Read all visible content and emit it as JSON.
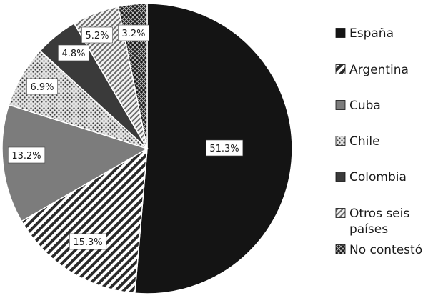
{
  "chart_data": {
    "type": "pie",
    "categories": [
      "España",
      "Argentina",
      "Cuba",
      "Chile",
      "Colombia",
      "Otros seis países",
      "No contestó"
    ],
    "values": [
      51.3,
      15.3,
      13.2,
      6.9,
      4.8,
      5.2,
      3.2
    ],
    "value_labels": [
      "51.3%",
      "15.3%",
      "13.2%",
      "6.9%",
      "4.8%",
      "5.2%",
      "3.2%"
    ],
    "legend": {
      "position": "right",
      "entries": [
        {
          "label": "España",
          "lines": [
            "España"
          ]
        },
        {
          "label": "Argentina",
          "lines": [
            "Argentina"
          ]
        },
        {
          "label": "Cuba",
          "lines": [
            "Cuba"
          ]
        },
        {
          "label": "Chile",
          "lines": [
            "Chile"
          ]
        },
        {
          "label": "Colombia",
          "lines": [
            "Colombia"
          ]
        },
        {
          "label": "Otros seis países",
          "lines": [
            "Otros seis",
            "países"
          ]
        },
        {
          "label": "No contestó",
          "lines": [
            "No contestó"
          ]
        }
      ]
    },
    "slice_styles": [
      "solid-black",
      "diagonal-stripes",
      "solid-gray",
      "dotted",
      "solid-dark-gray",
      "light-diagonal-stripes",
      "crosshatch"
    ],
    "colors": {
      "black": "#141414",
      "gray": "#7c7c7c",
      "dark_gray": "#3a3a3a",
      "light": "#d9d9d9",
      "white": "#ffffff"
    },
    "start_angle": "12 o'clock",
    "direction": "clockwise"
  }
}
